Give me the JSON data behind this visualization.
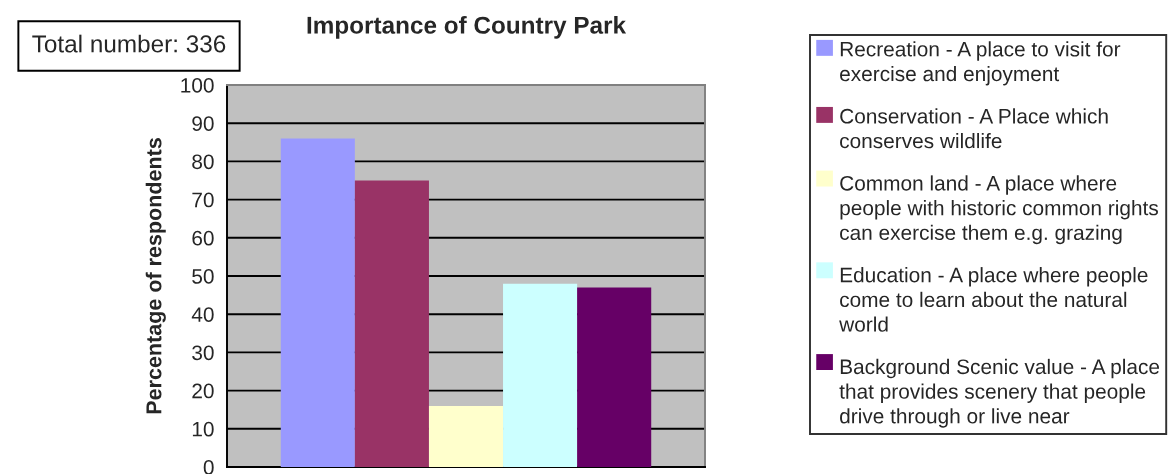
{
  "chart_data": {
    "type": "bar",
    "title": "Importance of Country Park",
    "ylabel": "Percentage of respondents",
    "annotations": [
      "Total number: 336"
    ],
    "categories": [
      null
    ],
    "series": [
      {
        "name": "Recreation - A place to visit for\nexercise and enjoyment",
        "color": "#9999ff",
        "values": [
          86
        ]
      },
      {
        "name": "Conservation - A Place which\nconserves wildlife",
        "color": "#993366",
        "values": [
          75
        ]
      },
      {
        "name": "Common land - A place where\npeople with historic common rights\ncan exercise them e.g. grazing",
        "color": "#ffffcc",
        "values": [
          16
        ]
      },
      {
        "name": "Education - A place where people\ncome to learn about the natural\nworld",
        "color": "#ccffff",
        "values": [
          48
        ]
      },
      {
        "name": "Background Scenic value - A place\nthat provides scenery that people\ndrive through or live near",
        "color": "#660066",
        "values": [
          47
        ]
      }
    ],
    "ylim": [
      0,
      100
    ],
    "yticks": [
      0,
      10,
      20,
      30,
      40,
      50,
      60,
      70,
      80,
      90,
      100
    ],
    "grid": "y",
    "legend": "right"
  }
}
